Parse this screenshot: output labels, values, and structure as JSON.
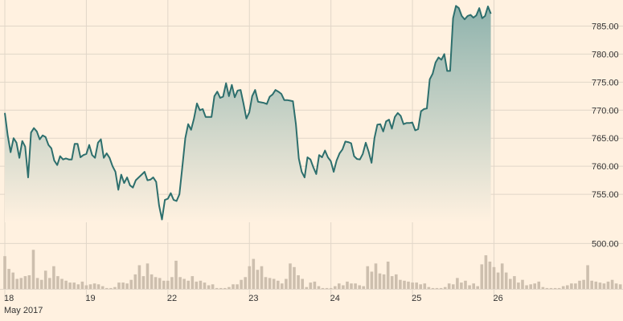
{
  "chart_data": {
    "type": "line",
    "title": "",
    "colors": {
      "background": "#fff1e0",
      "line": "#2d6f6d",
      "area_top": "#8fb3ad",
      "area_bottom": "#fff1e0",
      "grid": "#e1d6c8",
      "volume_bar": "#cdbfae",
      "tick_text": "#333333"
    },
    "grid": true,
    "price_axis": {
      "position": "right",
      "min": 750,
      "max": 787.5,
      "ticks": [
        755,
        760,
        765,
        770,
        775,
        780,
        785
      ],
      "tick_labels": [
        "755.00",
        "760.00",
        "765.00",
        "770.00",
        "775.00",
        "780.00",
        "785.00"
      ]
    },
    "volume_axis": {
      "position": "right",
      "min": 0,
      "max": 750,
      "ticks": [
        500
      ],
      "tick_labels": [
        "500.00"
      ]
    },
    "x_axis": {
      "min": 0,
      "max": 7.06,
      "ticks": [
        {
          "x": 0,
          "label": "18"
        },
        {
          "x": 1,
          "label": "19"
        },
        {
          "x": 2,
          "label": "22"
        },
        {
          "x": 3,
          "label": "23"
        },
        {
          "x": 4,
          "label": "24"
        },
        {
          "x": 5,
          "label": "25"
        },
        {
          "x": 6,
          "label": "26"
        }
      ],
      "sub_label": "May 2017"
    },
    "price_series": {
      "x_step": 0.0357,
      "values": [
        769.5,
        765.5,
        762.5,
        765.0,
        764.2,
        761.5,
        764.5,
        763.5,
        758.0,
        766.0,
        766.8,
        766.2,
        764.8,
        765.5,
        765.2,
        763.8,
        763.2,
        761.0,
        760.2,
        761.8,
        761.2,
        761.4,
        761.2,
        761.2,
        764.0,
        764.0,
        761.6,
        762.0,
        762.2,
        763.8,
        762.0,
        761.5,
        764.2,
        764.8,
        761.5,
        762.3,
        761.5,
        760.0,
        759.0,
        755.8,
        758.5,
        757.0,
        758.0,
        756.6,
        756.2,
        757.5,
        758.0,
        758.5,
        759.0,
        757.5,
        757.6,
        758.0,
        757.2,
        753.0,
        750.5,
        754.0,
        754.2,
        755.2,
        754.0,
        753.8,
        755.0,
        760.0,
        765.0,
        767.5,
        766.5,
        768.5,
        771.2,
        770.0,
        770.2,
        768.8,
        768.8,
        768.8,
        772.5,
        773.3,
        772.2,
        772.4,
        774.8,
        772.5,
        774.5,
        772.3,
        773.5,
        773.6,
        771.2,
        768.5,
        769.6,
        772.5,
        773.6,
        771.5,
        771.4,
        771.3,
        771.1,
        772.4,
        772.8,
        773.6,
        773.3,
        772.9,
        771.8,
        771.8,
        771.7,
        771.6,
        767.5,
        761.4,
        759.0,
        758.0,
        761.6,
        761.2,
        759.8,
        758.6,
        762.0,
        761.6,
        762.8,
        761.6,
        760.9,
        759.0,
        761.0,
        762.3,
        763.0,
        764.4,
        764.3,
        764.1,
        761.8,
        761.3,
        761.2,
        762.2,
        764.2,
        762.6,
        760.6,
        765.0,
        767.4,
        767.5,
        766.2,
        768.0,
        768.3,
        766.7,
        768.8,
        769.5,
        769.0,
        767.5,
        767.7,
        767.7,
        767.8,
        766.4,
        766.6,
        769.8,
        770.2,
        770.3,
        775.5,
        776.5,
        778.5,
        779.4,
        779.0,
        780.0,
        777.0,
        777.0,
        786.4,
        788.6,
        788.2,
        786.8,
        786.2,
        786.8,
        787.0,
        786.5,
        786.9,
        788.2,
        786.4,
        786.8,
        788.5,
        787.2
      ]
    },
    "volume_series": {
      "x_step": 0.05,
      "values": [
        360,
        220,
        180,
        110,
        120,
        140,
        150,
        430,
        120,
        100,
        200,
        120,
        250,
        140,
        110,
        90,
        70,
        70,
        50,
        80,
        40,
        50,
        60,
        50,
        30,
        10,
        10,
        20,
        70,
        70,
        60,
        100,
        160,
        260,
        140,
        280,
        160,
        130,
        120,
        90,
        90,
        130,
        310,
        130,
        110,
        90,
        140,
        80,
        90,
        70,
        40,
        50,
        10,
        10,
        10,
        20,
        50,
        50,
        100,
        130,
        250,
        330,
        210,
        250,
        130,
        120,
        110,
        90,
        60,
        110,
        280,
        240,
        150,
        110,
        20,
        70,
        80,
        30,
        10,
        10,
        10,
        30,
        60,
        40,
        80,
        60,
        60,
        40,
        30,
        250,
        190,
        280,
        170,
        160,
        300,
        140,
        160,
        100,
        90,
        80,
        70,
        70,
        50,
        60,
        20,
        10,
        10,
        10,
        20,
        60,
        50,
        120,
        70,
        90,
        40,
        60,
        30,
        270,
        370,
        300,
        240,
        180,
        280,
        180,
        110,
        140,
        70,
        100,
        40,
        50,
        60,
        80,
        20,
        10,
        10,
        10,
        10,
        30,
        40,
        60,
        60,
        90,
        100,
        260,
        90,
        80,
        70,
        60,
        80,
        100,
        60,
        50,
        40,
        30,
        10,
        20,
        20,
        110,
        90,
        40,
        20,
        80,
        110,
        80,
        70,
        60,
        60,
        190,
        90,
        100,
        90,
        20,
        20,
        30,
        10,
        30,
        30
      ]
    }
  }
}
